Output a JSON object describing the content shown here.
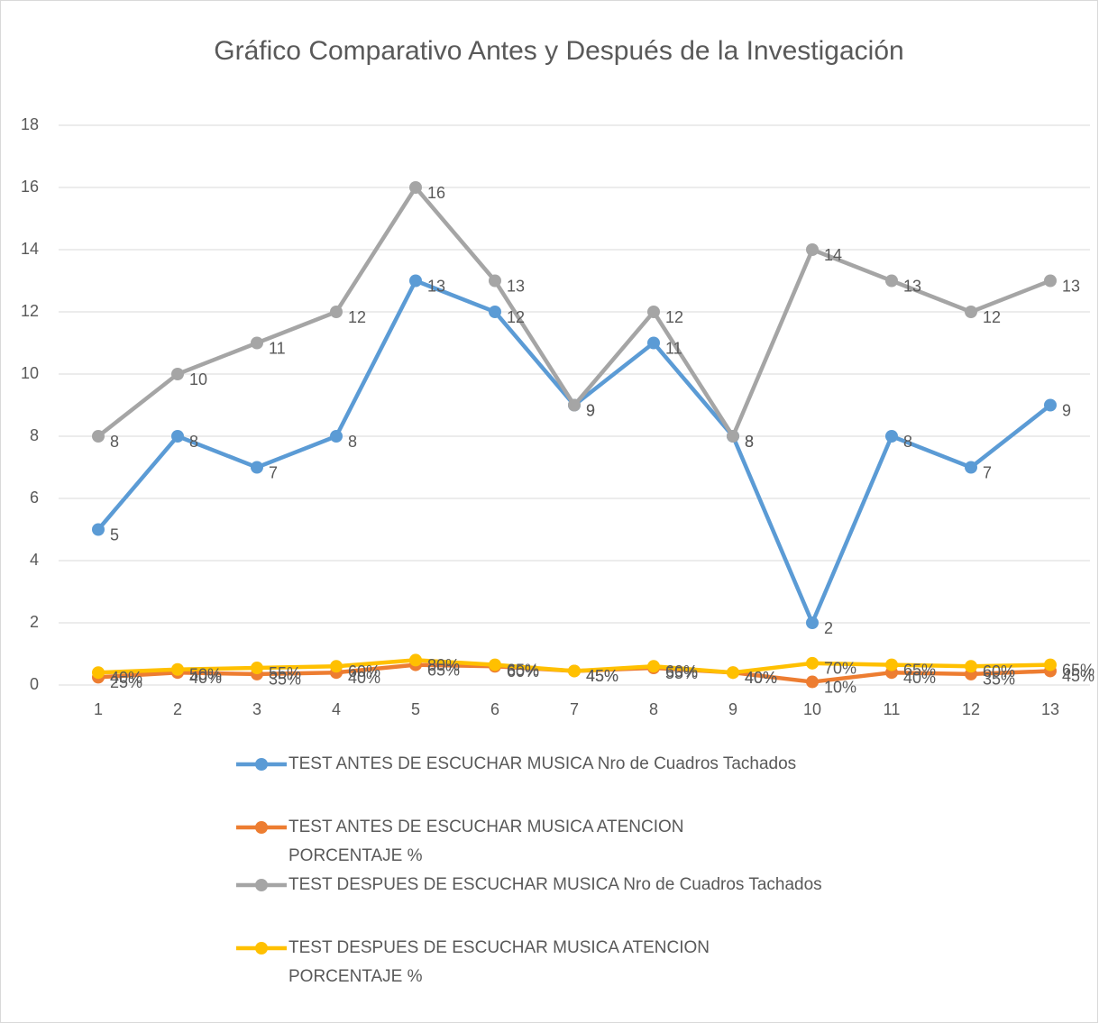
{
  "chart_data": {
    "type": "line",
    "title": "Gráfico Comparativo Antes y Después de la Investigación",
    "categories": [
      1,
      2,
      3,
      4,
      5,
      6,
      7,
      8,
      9,
      10,
      11,
      12,
      13
    ],
    "ylim": [
      0,
      18
    ],
    "yticks": [
      0,
      2,
      4,
      6,
      8,
      10,
      12,
      14,
      16,
      18
    ],
    "grid": true,
    "legend": "bottom",
    "series": [
      {
        "name": "TEST ANTES DE ESCUCHAR MUSICA Nro de Cuadros Tachados",
        "color": "#5b9bd5",
        "values": [
          5,
          8,
          7,
          8,
          13,
          12,
          9,
          11,
          8,
          2,
          8,
          7,
          9
        ]
      },
      {
        "name": "TEST ANTES DE ESCUCHAR MUSICA ATENCION PORCENTAJE %",
        "color": "#ed7d31",
        "values": [
          0.25,
          0.4,
          0.35,
          0.4,
          0.65,
          0.6,
          0.45,
          0.55,
          0.4,
          0.1,
          0.4,
          0.35,
          0.45
        ],
        "value_labels": [
          "25%",
          "40%",
          "35%",
          "40%",
          "65%",
          "60%",
          "45%",
          "55%",
          "40%",
          "10%",
          "40%",
          "35%",
          "45%"
        ]
      },
      {
        "name": "TEST DESPUES DE ESCUCHAR MUSICA Nro de Cuadros Tachados",
        "color": "#a5a5a5",
        "values": [
          8,
          10,
          11,
          12,
          16,
          13,
          9,
          12,
          8,
          14,
          13,
          12,
          13
        ]
      },
      {
        "name": "TEST DESPUES DE ESCUCHAR MUSICA ATENCION PORCENTAJE %",
        "color": "#ffc000",
        "values": [
          0.4,
          0.5,
          0.55,
          0.6,
          0.8,
          0.65,
          0.45,
          0.6,
          0.4,
          0.7,
          0.65,
          0.6,
          0.65
        ],
        "value_labels": [
          "40%",
          "50%",
          "55%",
          "60%",
          "80%",
          "65%",
          "45%",
          "60%",
          "40%",
          "70%",
          "65%",
          "60%",
          "65%"
        ]
      }
    ]
  }
}
